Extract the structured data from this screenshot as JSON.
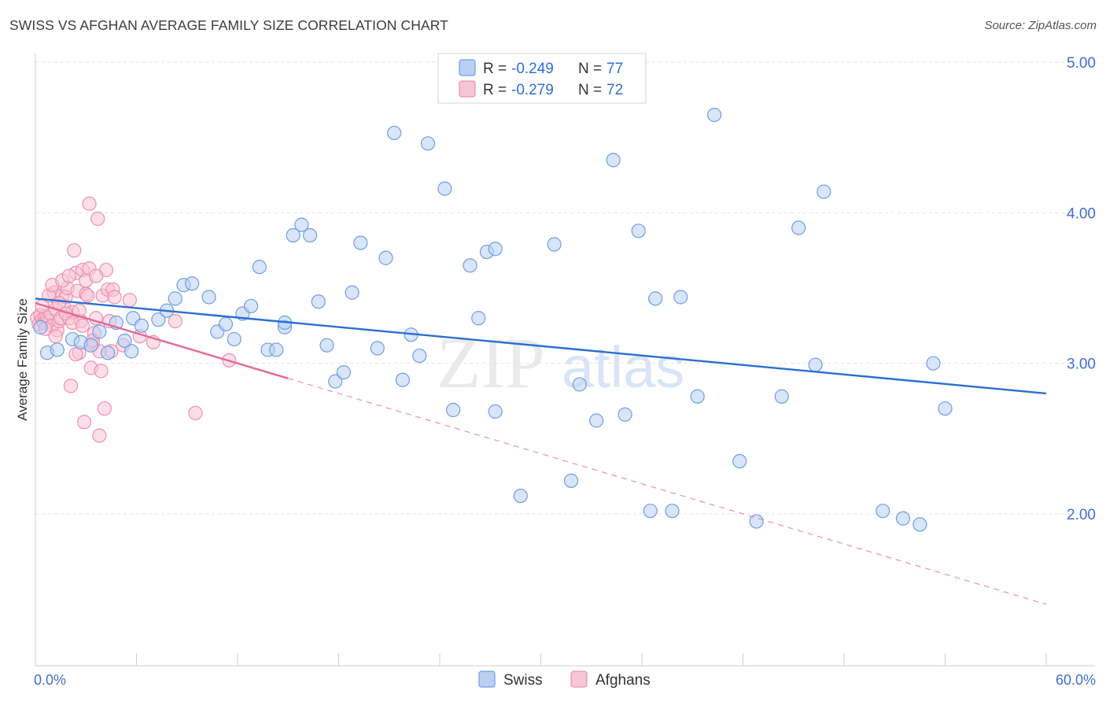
{
  "header": {
    "title": "SWISS VS AFGHAN AVERAGE FAMILY SIZE CORRELATION CHART",
    "source": "Source: ZipAtlas.com"
  },
  "legend": {
    "swiss": {
      "r_label": "R =",
      "r_value": "-0.249",
      "n_label": "N =",
      "n_value": "77"
    },
    "afghans": {
      "r_label": "R =",
      "r_value": "-0.279",
      "n_label": "N =",
      "n_value": "72"
    },
    "bottom": [
      "Swiss",
      "Afghans"
    ]
  },
  "watermark": {
    "zip": "ZIP",
    "atlas": "atlas"
  },
  "colors": {
    "swiss": "#6f9ee6",
    "swiss_fill": "#b9d0f3",
    "swiss_line": "#2a6fd4",
    "afghans": "#ef8fb0",
    "afghans_fill": "#f7c5d6",
    "afghans_line": "#e46a95"
  },
  "chart_data": {
    "type": "scatter",
    "title": "SWISS VS AFGHAN AVERAGE FAMILY SIZE CORRELATION CHART",
    "xlabel": "",
    "ylabel": "Average Family Size",
    "xlim": [
      0,
      60
    ],
    "ylim": [
      1.0,
      5.1
    ],
    "x_tick_labels": [
      "0.0%",
      "60.0%"
    ],
    "y_ticks": [
      2.0,
      3.0,
      4.0,
      5.0
    ],
    "y_tick_labels": [
      "2.00",
      "3.00",
      "4.00",
      "5.00"
    ],
    "grid": true,
    "legend_position": "top-center",
    "series": [
      {
        "name": "Swiss",
        "r": -0.249,
        "n": 77,
        "trend": {
          "x": [
            0,
            60
          ],
          "y": [
            3.43,
            2.8
          ]
        },
        "points": [
          [
            0.3,
            3.24
          ],
          [
            0.7,
            3.07
          ],
          [
            1.3,
            3.09
          ],
          [
            2.2,
            3.16
          ],
          [
            2.7,
            3.14
          ],
          [
            3.3,
            3.12
          ],
          [
            3.8,
            3.21
          ],
          [
            4.3,
            3.07
          ],
          [
            4.8,
            3.27
          ],
          [
            5.3,
            3.15
          ],
          [
            5.7,
            3.08
          ],
          [
            5.8,
            3.3
          ],
          [
            6.3,
            3.25
          ],
          [
            7.3,
            3.29
          ],
          [
            7.8,
            3.35
          ],
          [
            8.3,
            3.43
          ],
          [
            8.8,
            3.52
          ],
          [
            9.3,
            3.53
          ],
          [
            10.3,
            3.44
          ],
          [
            10.8,
            3.21
          ],
          [
            11.3,
            3.26
          ],
          [
            11.8,
            3.16
          ],
          [
            12.3,
            3.33
          ],
          [
            12.8,
            3.38
          ],
          [
            13.3,
            3.64
          ],
          [
            13.8,
            3.09
          ],
          [
            14.3,
            3.09
          ],
          [
            14.8,
            3.24
          ],
          [
            14.8,
            3.27
          ],
          [
            15.3,
            3.85
          ],
          [
            15.8,
            3.92
          ],
          [
            16.3,
            3.85
          ],
          [
            16.8,
            3.41
          ],
          [
            17.3,
            3.12
          ],
          [
            17.8,
            2.88
          ],
          [
            18.3,
            2.94
          ],
          [
            18.8,
            3.47
          ],
          [
            19.3,
            3.8
          ],
          [
            20.3,
            3.1
          ],
          [
            20.8,
            3.7
          ],
          [
            21.3,
            4.53
          ],
          [
            21.8,
            2.89
          ],
          [
            22.3,
            3.19
          ],
          [
            22.8,
            3.05
          ],
          [
            23.3,
            4.46
          ],
          [
            24.3,
            4.16
          ],
          [
            24.8,
            2.69
          ],
          [
            25.8,
            3.65
          ],
          [
            26.3,
            3.3
          ],
          [
            26.8,
            3.74
          ],
          [
            27.3,
            3.76
          ],
          [
            27.3,
            2.68
          ],
          [
            28.8,
            2.12
          ],
          [
            30.8,
            3.79
          ],
          [
            31.8,
            2.22
          ],
          [
            32.3,
            2.86
          ],
          [
            33.3,
            2.62
          ],
          [
            34.3,
            4.35
          ],
          [
            35.0,
            2.66
          ],
          [
            35.8,
            3.88
          ],
          [
            36.5,
            2.02
          ],
          [
            36.8,
            3.43
          ],
          [
            37.8,
            2.02
          ],
          [
            38.3,
            3.44
          ],
          [
            39.3,
            2.78
          ],
          [
            40.3,
            4.65
          ],
          [
            41.8,
            2.35
          ],
          [
            42.8,
            1.95
          ],
          [
            44.3,
            2.78
          ],
          [
            45.3,
            3.9
          ],
          [
            46.3,
            2.99
          ],
          [
            46.8,
            4.14
          ],
          [
            50.3,
            2.02
          ],
          [
            51.5,
            1.97
          ],
          [
            52.5,
            1.93
          ],
          [
            53.3,
            3.0
          ],
          [
            54.0,
            2.7
          ]
        ]
      },
      {
        "name": "Afghans",
        "r": -0.279,
        "n": 72,
        "trend": {
          "x": [
            0,
            15
          ],
          "y": [
            3.4,
            2.9
          ]
        },
        "trend_dashed": {
          "x": [
            15,
            60
          ],
          "y": [
            2.9,
            1.4
          ]
        },
        "points": [
          [
            0.1,
            3.3
          ],
          [
            0.2,
            3.26
          ],
          [
            0.3,
            3.32
          ],
          [
            0.4,
            3.29
          ],
          [
            0.5,
            3.27
          ],
          [
            0.6,
            3.31
          ],
          [
            0.7,
            3.3
          ],
          [
            0.8,
            3.28
          ],
          [
            0.9,
            3.33
          ],
          [
            1.0,
            3.25
          ],
          [
            1.1,
            3.47
          ],
          [
            1.2,
            3.36
          ],
          [
            1.3,
            3.22
          ],
          [
            1.4,
            3.28
          ],
          [
            1.5,
            3.3
          ],
          [
            1.6,
            3.45
          ],
          [
            1.7,
            3.38
          ],
          [
            1.8,
            3.44
          ],
          [
            1.9,
            3.5
          ],
          [
            2.0,
            3.3
          ],
          [
            2.1,
            2.85
          ],
          [
            2.2,
            3.34
          ],
          [
            2.3,
            3.75
          ],
          [
            2.4,
            3.6
          ],
          [
            2.5,
            3.48
          ],
          [
            2.6,
            3.07
          ],
          [
            2.7,
            3.28
          ],
          [
            2.8,
            3.62
          ],
          [
            2.9,
            2.61
          ],
          [
            3.0,
            3.46
          ],
          [
            3.1,
            3.45
          ],
          [
            3.2,
            4.06
          ],
          [
            3.3,
            2.97
          ],
          [
            3.4,
            3.13
          ],
          [
            3.5,
            3.2
          ],
          [
            3.6,
            3.3
          ],
          [
            3.7,
            3.96
          ],
          [
            3.8,
            2.52
          ],
          [
            3.9,
            2.95
          ],
          [
            4.0,
            3.45
          ],
          [
            4.1,
            2.7
          ],
          [
            4.2,
            3.62
          ],
          [
            4.3,
            3.49
          ],
          [
            4.4,
            3.28
          ],
          [
            4.5,
            3.08
          ],
          [
            4.6,
            3.49
          ],
          [
            4.7,
            3.44
          ],
          [
            7.0,
            3.14
          ],
          [
            8.3,
            3.28
          ],
          [
            9.5,
            2.67
          ],
          [
            11.5,
            3.02
          ],
          [
            0.4,
            3.38
          ],
          [
            0.6,
            3.23
          ],
          [
            0.8,
            3.45
          ],
          [
            1.0,
            3.52
          ],
          [
            1.2,
            3.18
          ],
          [
            1.4,
            3.4
          ],
          [
            1.6,
            3.55
          ],
          [
            1.8,
            3.33
          ],
          [
            2.0,
            3.58
          ],
          [
            2.2,
            3.27
          ],
          [
            2.4,
            3.06
          ],
          [
            2.6,
            3.35
          ],
          [
            2.8,
            3.25
          ],
          [
            3.0,
            3.55
          ],
          [
            3.2,
            3.63
          ],
          [
            3.4,
            3.15
          ],
          [
            3.6,
            3.58
          ],
          [
            3.8,
            3.08
          ],
          [
            5.2,
            3.12
          ],
          [
            5.6,
            3.42
          ],
          [
            6.2,
            3.18
          ]
        ]
      }
    ]
  }
}
